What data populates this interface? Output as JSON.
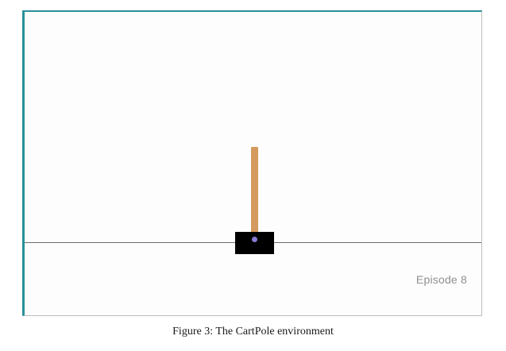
{
  "environment": {
    "name": "CartPole",
    "episode_label": "Episode 8",
    "colors": {
      "frame_accent": "#2a8f9a",
      "cart": "#000000",
      "pole": "#d49a5e",
      "axle": "#8a7ad4",
      "track": "#6f6f6f",
      "episode_text": "#8f8f8f"
    }
  },
  "caption": {
    "text": "Figure 3: The CartPole environment"
  }
}
